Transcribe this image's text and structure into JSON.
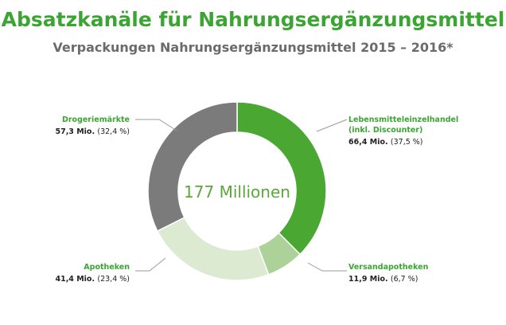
{
  "title": "Absatzkanäle für Nahrungsergänzungsmittel",
  "subtitle": "Verpackungen Nahrungsergänzungsmittel 2015 – 2016*",
  "chart_data": {
    "type": "pie",
    "center_label": "177 Millionen",
    "total_millions": 177,
    "slices": [
      {
        "label_lines": [
          "Lebensmitteleinzelhandel",
          "(inkl. Discounter)"
        ],
        "value": 66.4,
        "value_text": "66,4 Mio.",
        "percent_text": "(37,5 %)",
        "color": "#4aa832"
      },
      {
        "label_lines": [
          "Versandapotheken"
        ],
        "value": 11.9,
        "value_text": "11,9 Mio.",
        "percent_text": "(6,7 %)",
        "color": "#acd29a"
      },
      {
        "label_lines": [
          "Apotheken"
        ],
        "value": 41.4,
        "value_text": "41,4 Mio.",
        "percent_text": "(23,4 %)",
        "color": "#dbead0"
      },
      {
        "label_lines": [
          "Drogeriemärkte"
        ],
        "value": 57.3,
        "value_text": "57,3 Mio.",
        "percent_text": "(32,4 %)",
        "color": "#7c7b7c"
      }
    ]
  }
}
